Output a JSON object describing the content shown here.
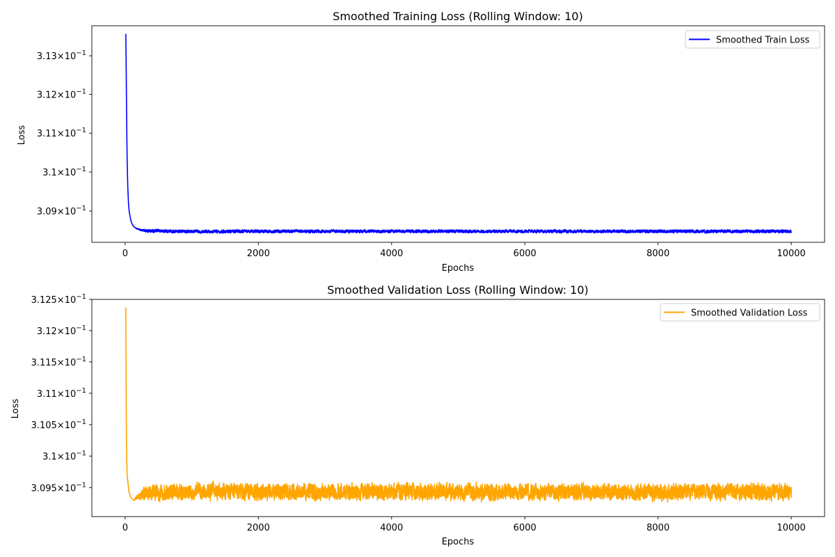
{
  "chart_data": [
    {
      "type": "line",
      "title": "Smoothed Training Loss (Rolling Window: 10)",
      "xlabel": "Epochs",
      "ylabel": "Loss",
      "yscale": "log",
      "xlim": [
        -500,
        10500
      ],
      "ylim": [
        0.3082,
        0.31378
      ],
      "x_ticks": [
        0,
        2000,
        4000,
        6000,
        8000,
        10000
      ],
      "x_tick_labels": [
        "0",
        "2000",
        "4000",
        "6000",
        "8000",
        "10000"
      ],
      "y_ticks": [
        0.309,
        0.31,
        0.311,
        0.312,
        0.313
      ],
      "y_tick_labels": [
        {
          "mantissa": "3.09",
          "base": "10",
          "exp": "−1"
        },
        {
          "mantissa": "3.1",
          "base": "10",
          "exp": "−1"
        },
        {
          "mantissa": "3.11",
          "base": "10",
          "exp": "−1"
        },
        {
          "mantissa": "3.12",
          "base": "10",
          "exp": "−1"
        },
        {
          "mantissa": "3.13",
          "base": "10",
          "exp": "−1"
        }
      ],
      "legend_position": "top-right",
      "grid": false,
      "series": [
        {
          "name": "Smoothed Train Loss",
          "color": "#0000ff",
          "x": [
            10,
            15,
            20,
            25,
            30,
            40,
            50,
            60,
            75,
            90,
            110,
            130,
            160,
            200,
            250,
            300,
            400,
            500,
            700,
            1000,
            1500,
            2000,
            3000,
            4000,
            5000,
            6000,
            7000,
            8000,
            9000,
            10000
          ],
          "y": [
            0.31357,
            0.3128,
            0.3118,
            0.311,
            0.3103,
            0.3096,
            0.3092,
            0.309,
            0.30885,
            0.30873,
            0.30865,
            0.3086,
            0.30856,
            0.30853,
            0.30851,
            0.3085,
            0.30849,
            0.30849,
            0.30848,
            0.30848,
            0.30848,
            0.30848,
            0.30848,
            0.30848,
            0.30848,
            0.30848,
            0.30848,
            0.30848,
            0.30848,
            0.30848
          ],
          "noise_amplitude": 4e-05
        }
      ]
    },
    {
      "type": "line",
      "title": "Smoothed Validation Loss (Rolling Window: 10)",
      "xlabel": "Epochs",
      "ylabel": "Loss",
      "yscale": "log",
      "xlim": [
        -500,
        10500
      ],
      "ylim": [
        0.30904,
        0.3125
      ],
      "x_ticks": [
        0,
        2000,
        4000,
        6000,
        8000,
        10000
      ],
      "x_tick_labels": [
        "0",
        "2000",
        "4000",
        "6000",
        "8000",
        "10000"
      ],
      "y_ticks": [
        0.3095,
        0.31,
        0.3105,
        0.311,
        0.3115,
        0.312,
        0.3125
      ],
      "y_tick_labels": [
        {
          "mantissa": "3.095",
          "base": "10",
          "exp": "−1"
        },
        {
          "mantissa": "3.1",
          "base": "10",
          "exp": "−1"
        },
        {
          "mantissa": "3.105",
          "base": "10",
          "exp": "−1"
        },
        {
          "mantissa": "3.11",
          "base": "10",
          "exp": "−1"
        },
        {
          "mantissa": "3.115",
          "base": "10",
          "exp": "−1"
        },
        {
          "mantissa": "3.12",
          "base": "10",
          "exp": "−1"
        },
        {
          "mantissa": "3.125",
          "base": "10",
          "exp": "−1"
        }
      ],
      "legend_position": "top-right",
      "grid": false,
      "series": [
        {
          "name": "Smoothed Validation Loss",
          "color": "#ffa500",
          "x": [
            10,
            15,
            20,
            25,
            30,
            40,
            50,
            60,
            80,
            100,
            130,
            160,
            200,
            300,
            400,
            600,
            1000,
            2000,
            3000,
            4000,
            5000,
            6000,
            7000,
            8000,
            9000,
            10000
          ],
          "y": [
            0.31237,
            0.311,
            0.3102,
            0.3099,
            0.3097,
            0.3096,
            0.3095,
            0.30942,
            0.30936,
            0.30932,
            0.3093,
            0.30933,
            0.30936,
            0.30941,
            0.30942,
            0.30942,
            0.30943,
            0.30943,
            0.30943,
            0.30943,
            0.30943,
            0.30943,
            0.30943,
            0.30943,
            0.30943,
            0.30943
          ],
          "noise_amplitude": 0.00013
        }
      ]
    }
  ]
}
